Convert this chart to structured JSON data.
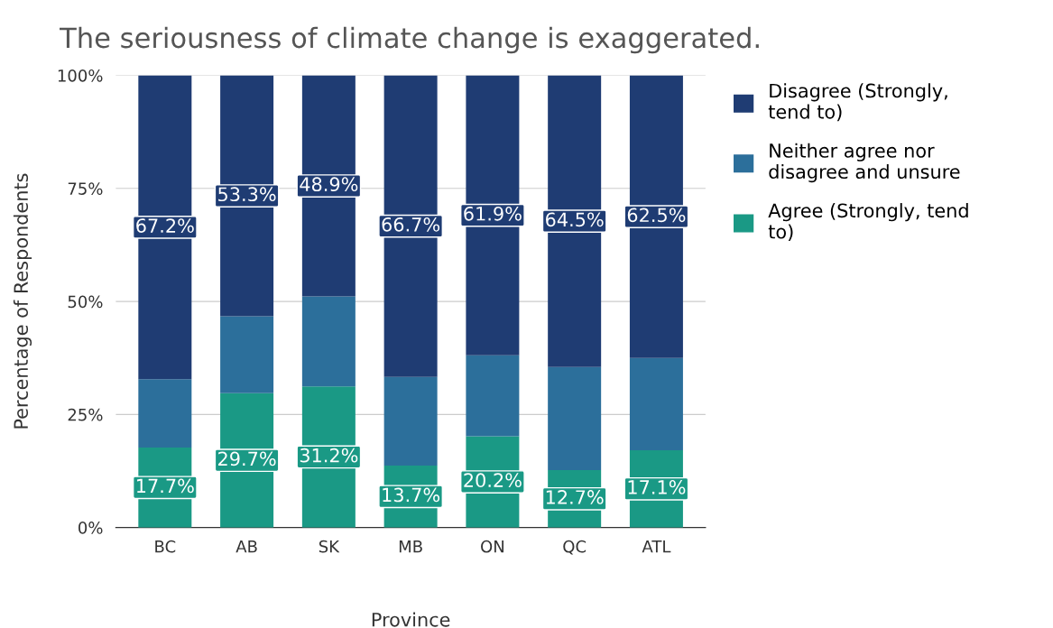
{
  "chart_data": {
    "type": "bar",
    "stacked": true,
    "title": "The seriousness of climate change is exaggerated.",
    "xlabel": "Province",
    "ylabel": "Percentage of Respondents",
    "categories": [
      "BC",
      "AB",
      "SK",
      "MB",
      "ON",
      "QC",
      "ATL"
    ],
    "series": [
      {
        "name": "Agree (Strongly, tend to)",
        "color": "#1a9985",
        "values": [
          17.7,
          29.7,
          31.2,
          13.7,
          20.2,
          12.7,
          17.1
        ],
        "value_labels": [
          "17.7%",
          "29.7%",
          "31.2%",
          "13.7%",
          "20.2%",
          "12.7%",
          "17.1%"
        ]
      },
      {
        "name": "Neither agree nor disagree and unsure",
        "color": "#2c6f9b",
        "values": [
          15.1,
          17.0,
          19.9,
          19.6,
          17.9,
          22.8,
          20.4
        ]
      },
      {
        "name": "Disagree (Strongly, tend to)",
        "color": "#1f3c73",
        "values": [
          67.2,
          53.3,
          48.9,
          66.7,
          61.9,
          64.5,
          62.5
        ],
        "value_labels": [
          "67.2%",
          "53.3%",
          "48.9%",
          "66.7%",
          "61.9%",
          "64.5%",
          "62.5%"
        ]
      }
    ],
    "ylim": [
      0,
      100
    ],
    "yticks": [
      {
        "value": 0,
        "label": "0%"
      },
      {
        "value": 25,
        "label": "25%"
      },
      {
        "value": 50,
        "label": "50%"
      },
      {
        "value": 75,
        "label": "75%"
      },
      {
        "value": 100,
        "label": "100%"
      }
    ],
    "grid": "y",
    "legend": "right"
  }
}
